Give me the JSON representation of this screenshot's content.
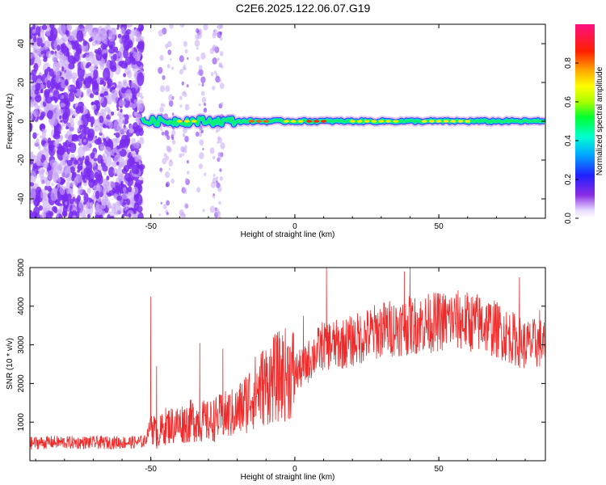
{
  "title": "C2E6.2025.122.06.07.G19",
  "colors": {
    "snr_line": "#ee2a2a",
    "noise_purple": "#7a2bf0",
    "noise_light": "#c9a8f7"
  },
  "chart_data": [
    {
      "type": "heatmap",
      "xlabel": "Height of straight line (km)",
      "ylabel": "Frequency (Hz)",
      "xlim": [
        -92,
        87
      ],
      "ylim": [
        -50,
        50
      ],
      "x_ticks": [
        -50,
        0,
        50
      ],
      "y_ticks": [
        -40,
        -20,
        0,
        20,
        40
      ],
      "colorbar": {
        "label": "Normalized spectral amplitude",
        "range": [
          0.0,
          1.0
        ],
        "ticks": [
          "0.0",
          "0.2",
          "0.4",
          "0.6",
          "0.8"
        ],
        "colormap": "rainbow (purple→blue→cyan→green→yellow→red→pink)"
      },
      "features": {
        "noise_region_x": [
          -92,
          -53
        ],
        "signal_line_frequency_hz": 0,
        "signal_start_x": -53
      }
    },
    {
      "type": "line",
      "xlabel": "Height of straight line (km)",
      "ylabel": "SNR (10 * v/v)",
      "xlim": [
        -92,
        87
      ],
      "ylim": [
        0,
        5000
      ],
      "x_ticks": [
        -50,
        0,
        50
      ],
      "y_ticks": [
        1000,
        2000,
        3000,
        4000,
        5000
      ],
      "series": [
        {
          "x": [
            -92,
            -85,
            -75,
            -65,
            -55,
            -52,
            -50,
            -48,
            -45,
            -40,
            -35,
            -30,
            -25,
            -20,
            -15,
            -10,
            -5,
            0,
            3,
            6,
            10,
            15,
            20,
            25,
            30,
            35,
            40,
            45,
            50,
            55,
            60,
            65,
            70,
            75,
            80,
            85,
            87
          ],
          "y": [
            450,
            480,
            470,
            470,
            480,
            500,
            1000,
            650,
            900,
            950,
            1050,
            1000,
            1150,
            1250,
            1700,
            2000,
            2200,
            2300,
            2400,
            2700,
            3000,
            3000,
            3100,
            3250,
            3400,
            3450,
            3500,
            3550,
            3600,
            3650,
            3600,
            3550,
            3400,
            3200,
            3000,
            3050,
            3000
          ],
          "spikes": [
            {
              "x": -50,
              "y": 4250
            },
            {
              "x": -48,
              "y": 2450
            },
            {
              "x": -33,
              "y": 3050
            },
            {
              "x": -25,
              "y": 2900
            },
            {
              "x": -4,
              "y": 3050
            },
            {
              "x": 3,
              "y": 3750
            },
            {
              "x": 11,
              "y": 5000
            },
            {
              "x": 38,
              "y": 4900
            },
            {
              "x": 40,
              "y": 5000
            },
            {
              "x": 78,
              "y": 4750
            },
            {
              "x": 85,
              "y": 3900
            }
          ]
        }
      ]
    }
  ]
}
